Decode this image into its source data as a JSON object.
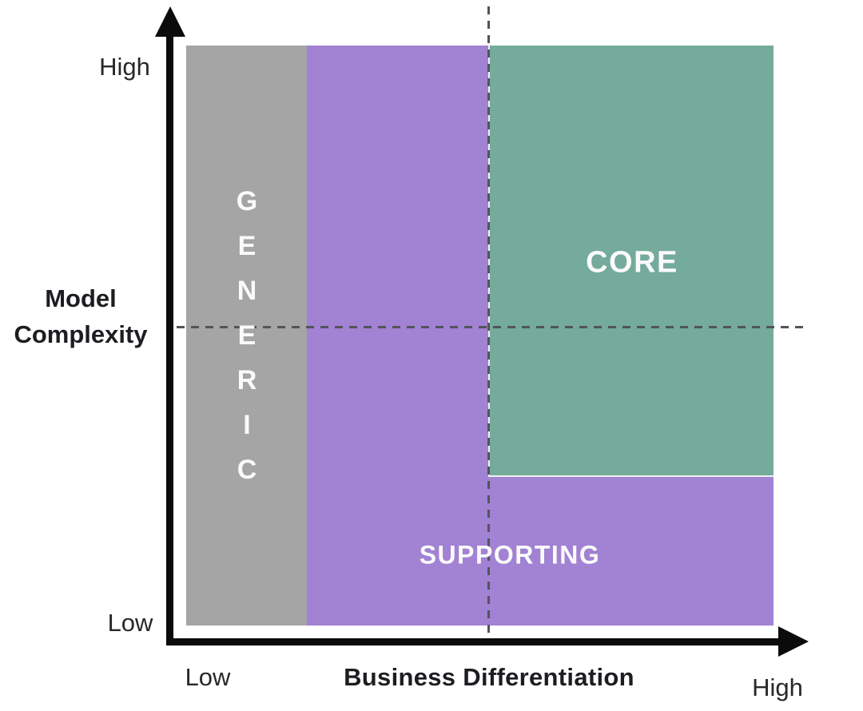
{
  "diagram": {
    "x_axis": {
      "label": "Business Differentiation",
      "min_label": "Low",
      "max_label": "High"
    },
    "y_axis": {
      "label": "Model Complexity",
      "min_label": "Low",
      "max_label": "High"
    },
    "regions": [
      {
        "id": "generic",
        "label": "GENERIC",
        "color": "#a6a5a6"
      },
      {
        "id": "supporting",
        "label": "SUPPORTING",
        "color": "#a182d3"
      },
      {
        "id": "core",
        "label": "CORE",
        "color": "#74ab9b"
      }
    ],
    "colors": {
      "background": "#ffffff",
      "axis": "#0b0b0b",
      "dashed_guides": "#53545a",
      "region_label_text": "#fbfafb",
      "axis_label_text": "#232327"
    }
  }
}
